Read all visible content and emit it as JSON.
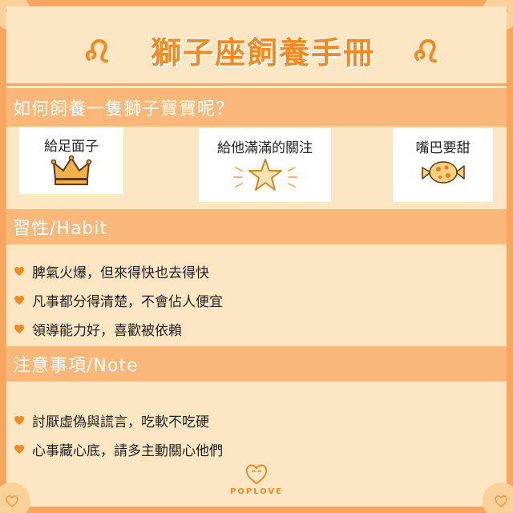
{
  "title": "獅子座飼養手冊",
  "question": "如何飼養一隻獅子寶寶呢？",
  "tips": [
    {
      "label": "給足面子",
      "icon": "crown-icon"
    },
    {
      "label": "給他滿滿的關注",
      "icon": "star-icon"
    },
    {
      "label": "嘴巴要甜",
      "icon": "candy-icon"
    }
  ],
  "habit": {
    "header": "習性/Habit",
    "items": [
      "脾氣火爆，但來得快也去得快",
      "凡事都分得清楚，不會佔人便宜",
      "領導能力好，喜歡被依賴"
    ]
  },
  "note": {
    "header": "注意事項/Note",
    "items": [
      "討厭虛偽與謊言，吃軟不吃硬",
      "心事藏心底，請多主動關心他們"
    ]
  },
  "brand": "POPLOVE",
  "colors": {
    "accent": "#f28a22",
    "header": "#f9b77a",
    "background": "#fde6c3",
    "border": "#f7a660"
  }
}
